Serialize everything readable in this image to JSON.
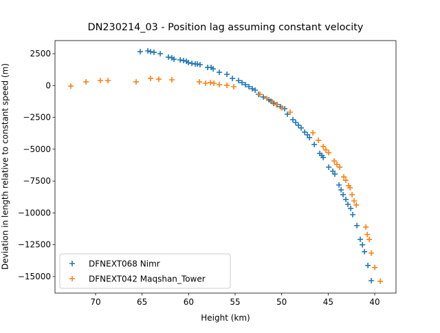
{
  "chart_data": {
    "type": "scatter",
    "title": "DN230214_03 - Position lag assuming constant velocity",
    "x_label": "Height (km)",
    "y_label": "Deviation in length relative to constant speed (m)",
    "xlim": [
      74.36,
      37.71
    ],
    "ylim": [
      -16300,
      3530
    ],
    "xticks": [
      70,
      65,
      60,
      55,
      50,
      45,
      40
    ],
    "yticks": [
      2500,
      0,
      {
        "value": -2500,
        "label": "−2500"
      },
      {
        "value": -5000,
        "label": "−5000"
      },
      {
        "value": -7500,
        "label": "−7500"
      },
      {
        "value": -10000,
        "label": "−10000"
      },
      {
        "value": -12500,
        "label": "−12500"
      },
      {
        "value": -15000,
        "label": "−15000"
      }
    ],
    "legend": "lower left",
    "series": [
      {
        "name": "DFNEXT068 Nimr",
        "color": "#1f77b4",
        "x": [
          65.2,
          64.38,
          64.09,
          63.72,
          63.05,
          62.17,
          61.8,
          61.57,
          60.9,
          60.54,
          60.24,
          60.02,
          59.65,
          59.28,
          59.06,
          58.77,
          57.95,
          57.58,
          57.36,
          56.7,
          55.88,
          55.29,
          54.63,
          54.26,
          53.89,
          53.52,
          53.15,
          52.85,
          52.48,
          51.97,
          51.37,
          51.15,
          50.86,
          50.49,
          50.12,
          49.67,
          49.38,
          48.79,
          48.49,
          48.2,
          47.9,
          47.53,
          47.23,
          47.01,
          46.49,
          45.9,
          45.68,
          45.53,
          44.94,
          44.5,
          44.28,
          43.84,
          43.61,
          43.39,
          43.1,
          42.88,
          42.58,
          42.36,
          41.91,
          41.55,
          41.32,
          41.1,
          40.73,
          40.36
        ],
        "values": [
          2660,
          2720,
          2660,
          2610,
          2500,
          2230,
          2180,
          2070,
          2010,
          1960,
          1910,
          1800,
          1740,
          1690,
          1690,
          1640,
          1420,
          1420,
          1310,
          1040,
          880,
          560,
          390,
          230,
          70,
          -90,
          -250,
          -360,
          -690,
          -900,
          -1120,
          -1230,
          -1390,
          -1500,
          -1660,
          -1820,
          -2250,
          -2680,
          -2900,
          -3120,
          -3330,
          -3660,
          -3870,
          -4090,
          -4630,
          -5330,
          -5490,
          -5650,
          -6410,
          -6730,
          -6950,
          -7810,
          -8190,
          -8570,
          -8950,
          -9330,
          -9650,
          -10140,
          -11000,
          -12080,
          -12510,
          -13050,
          -14130,
          -15320
        ]
      },
      {
        "name": "DFNEXT042 Maqshan_Tower",
        "color": "#ff7f0e",
        "x": [
          72.66,
          71.03,
          69.48,
          68.67,
          65.64,
          64.09,
          63.2,
          61.8,
          58.84,
          58.17,
          57.66,
          57.28,
          56.7,
          55.88,
          55.14,
          52.33,
          51.6,
          51.0,
          50.56,
          49.97,
          49.08,
          46.64,
          46.05,
          45.53,
          45.24,
          44.94,
          44.35,
          44.06,
          43.76,
          43.32,
          43.1,
          42.8,
          42.65,
          42.43,
          42.21,
          41.98,
          40.95,
          40.8,
          40.58,
          40.36,
          39.99,
          39.4
        ],
        "values": [
          -40,
          290,
          390,
          390,
          290,
          560,
          500,
          450,
          290,
          180,
          230,
          180,
          70,
          20,
          -90,
          -690,
          -1010,
          -1280,
          -1500,
          -1770,
          -2090,
          -3710,
          -4300,
          -4790,
          -5060,
          -5280,
          -5920,
          -6190,
          -6410,
          -7170,
          -7440,
          -7870,
          -8030,
          -8570,
          -9060,
          -9380,
          -11110,
          -11700,
          -12080,
          -13160,
          -14290,
          -15370
        ]
      }
    ]
  }
}
